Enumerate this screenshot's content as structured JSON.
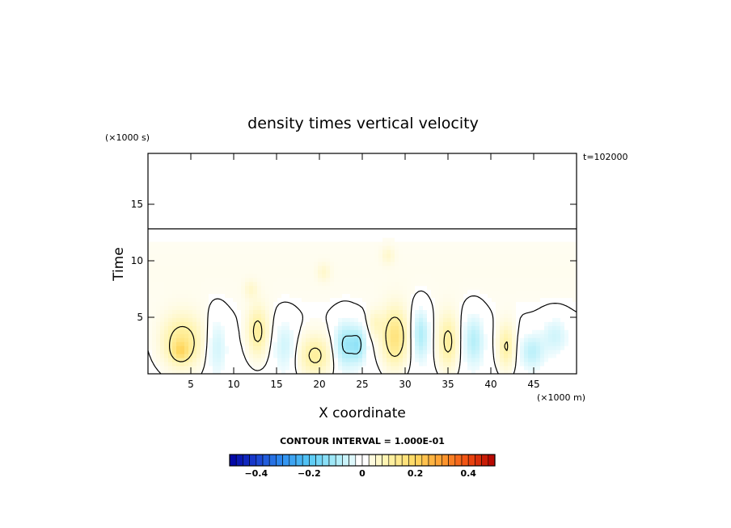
{
  "chart_data": {
    "type": "heatmap",
    "title": "density times vertical velocity",
    "xlabel": "X coordinate",
    "ylabel": "Time",
    "x_scale_note": "(×1000 m)",
    "y_scale_note": "(×1000 s)",
    "time_label": "t=102000",
    "xlim": [
      0,
      50
    ],
    "ylim": [
      0,
      19.5
    ],
    "x_ticks": [
      5,
      10,
      15,
      20,
      25,
      30,
      35,
      40,
      45
    ],
    "y_ticks": [
      5,
      10,
      15
    ],
    "contour_interval_text": "CONTOUR INTERVAL = 1.000E-01",
    "colorbar": {
      "range": [
        -0.5,
        0.5
      ],
      "ticks": [
        -0.4,
        -0.2,
        0,
        0.2,
        0.4
      ],
      "tick_labels": [
        "−0.4",
        "−0.2",
        "0",
        "0.2",
        "0.4"
      ],
      "low_color": "#1a1aa0",
      "mid_color": "#ffffff",
      "high_color": "#b00000"
    },
    "features": [
      {
        "x": 4.0,
        "y": 2.8,
        "amp": 0.13,
        "sx": 2.4,
        "sy": 2.3
      },
      {
        "x": 3.8,
        "y": 2.0,
        "amp": 0.09,
        "sx": 0.9,
        "sy": 0.8
      },
      {
        "x": 8.0,
        "y": 2.5,
        "amp": -0.06,
        "sx": 1.2,
        "sy": 2.5
      },
      {
        "x": 12.8,
        "y": 3.7,
        "amp": 0.11,
        "sx": 1.2,
        "sy": 2.2
      },
      {
        "x": 16.0,
        "y": 2.5,
        "amp": -0.06,
        "sx": 1.3,
        "sy": 2.2
      },
      {
        "x": 19.5,
        "y": 1.6,
        "amp": 0.11,
        "sx": 2.0,
        "sy": 1.8
      },
      {
        "x": 23.0,
        "y": 2.6,
        "amp": -0.12,
        "sx": 1.3,
        "sy": 2.0
      },
      {
        "x": 24.6,
        "y": 2.6,
        "amp": -0.1,
        "sx": 0.9,
        "sy": 1.6
      },
      {
        "x": 26.5,
        "y": 4.5,
        "amp": 0.05,
        "sx": 0.8,
        "sy": 1.2
      },
      {
        "x": 28.8,
        "y": 3.2,
        "amp": 0.15,
        "sx": 1.5,
        "sy": 2.5
      },
      {
        "x": 31.8,
        "y": 3.5,
        "amp": -0.1,
        "sx": 1.0,
        "sy": 2.2
      },
      {
        "x": 35.0,
        "y": 2.8,
        "amp": 0.11,
        "sx": 1.2,
        "sy": 2.4
      },
      {
        "x": 38.0,
        "y": 3.0,
        "amp": -0.09,
        "sx": 1.2,
        "sy": 2.2
      },
      {
        "x": 41.8,
        "y": 2.4,
        "amp": 0.1,
        "sx": 1.0,
        "sy": 2.0
      },
      {
        "x": 44.8,
        "y": 2.0,
        "amp": -0.08,
        "sx": 1.4,
        "sy": 1.5
      },
      {
        "x": 47.5,
        "y": 3.4,
        "amp": -0.06,
        "sx": 1.5,
        "sy": 1.6
      },
      {
        "x": 12.0,
        "y": 7.5,
        "amp": 0.04,
        "sx": 0.8,
        "sy": 0.8
      },
      {
        "x": 20.5,
        "y": 9.0,
        "amp": 0.04,
        "sx": 0.8,
        "sy": 0.8
      },
      {
        "x": 28.0,
        "y": 10.5,
        "amp": 0.04,
        "sx": 0.8,
        "sy": 0.8
      }
    ]
  }
}
